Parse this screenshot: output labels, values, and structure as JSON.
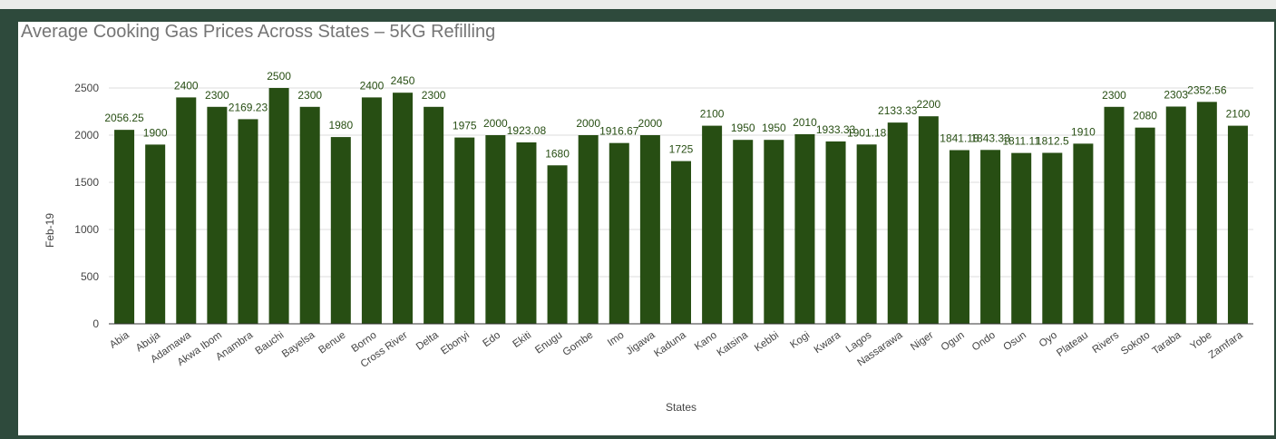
{
  "chart_data": {
    "type": "bar",
    "title": "Average Cooking Gas Prices Across States – 5KG Refilling",
    "xlabel": "States",
    "ylabel": "Feb-19",
    "ylim": [
      0,
      2500
    ],
    "yticks": [
      "0",
      "500",
      "1000",
      "1500",
      "2000",
      "2500"
    ],
    "grid": true,
    "bar_color": "#274e13",
    "label_color": "#274e13",
    "categories": [
      "Abia",
      "Abuja",
      "Adamawa",
      "Akwa Ibom",
      "Anambra",
      "Bauchi",
      "Bayelsa",
      "Benue",
      "Borno",
      "Cross River",
      "Delta",
      "Ebonyi",
      "Edo",
      "Ekiti",
      "Enugu",
      "Gombe",
      "Imo",
      "Jigawa",
      "Kaduna",
      "Kano",
      "Katsina",
      "Kebbi",
      "Kogi",
      "Kwara",
      "Lagos",
      "Nassarawa",
      "Niger",
      "Ogun",
      "Ondo",
      "Osun",
      "Oyo",
      "Plateau",
      "Rivers",
      "Sokoto",
      "Taraba",
      "Yobe",
      "Zamfara"
    ],
    "values": [
      2056.25,
      1900,
      2400,
      2300,
      2169.23,
      2500,
      2300,
      1980,
      2400,
      2450,
      2300,
      1975,
      2000,
      1923.08,
      1680,
      2000,
      1916.67,
      2000,
      1725,
      2100,
      1950,
      1950,
      2010,
      1933.33,
      1901.18,
      2133.33,
      2200,
      1841.18,
      1843.33,
      1811.11,
      1812.5,
      1910,
      2300,
      2080,
      2303,
      2352.56,
      2100
    ],
    "value_labels": [
      "2056.25",
      "1900",
      "2400",
      "2300",
      "2169.23",
      "2500",
      "2300",
      "1980",
      "2400",
      "2450",
      "2300",
      "1975",
      "2000",
      "1923.08",
      "1680",
      "2000",
      "1916.67",
      "2000",
      "1725",
      "2100",
      "1950",
      "1950",
      "2010",
      "1933.33",
      "1901.18",
      "2133.33",
      "2200",
      "1841.18",
      "1843.33",
      "1811.11",
      "1812.5",
      "1910",
      "2300",
      "2080",
      "2303",
      "2352.56",
      "2100"
    ]
  }
}
